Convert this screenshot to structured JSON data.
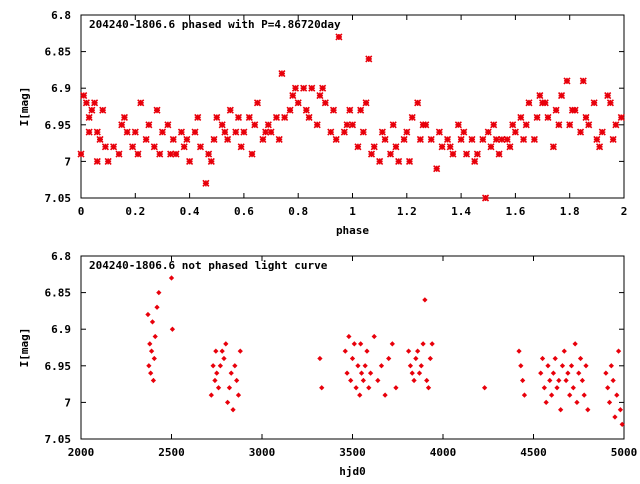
{
  "colors": {
    "points": "#e8000b",
    "axes": "#000000",
    "background": "#ffffff"
  },
  "chart_data": [
    {
      "type": "scatter",
      "title": "204240-1806.6 phased with P=4.86720day",
      "xlabel": "phase",
      "ylabel": "I[mag]",
      "xlim": [
        0,
        2
      ],
      "ylim": [
        7.05,
        6.8
      ],
      "y_inverted": true,
      "xticks": [
        "0",
        "0.2",
        "0.4",
        "0.6",
        "0.8",
        "1",
        "1.2",
        "1.4",
        "1.6",
        "1.8",
        "2"
      ],
      "yticks": [
        "6.8",
        "6.85",
        "6.9",
        "6.95",
        "7",
        "7.05"
      ],
      "marker": "star",
      "grid": false,
      "points": [
        [
          0.0,
          6.99
        ],
        [
          0.01,
          6.91
        ],
        [
          0.02,
          6.92
        ],
        [
          0.03,
          6.94
        ],
        [
          0.04,
          6.93
        ],
        [
          0.05,
          6.92
        ],
        [
          0.06,
          6.96
        ],
        [
          0.07,
          6.97
        ],
        [
          0.08,
          6.93
        ],
        [
          0.1,
          7.0
        ],
        [
          0.12,
          6.98
        ],
        [
          0.14,
          6.99
        ],
        [
          0.15,
          6.95
        ],
        [
          0.17,
          6.96
        ],
        [
          0.19,
          6.98
        ],
        [
          0.2,
          6.96
        ],
        [
          0.22,
          6.92
        ],
        [
          0.24,
          6.97
        ],
        [
          0.25,
          6.95
        ],
        [
          0.27,
          6.98
        ],
        [
          0.29,
          6.99
        ],
        [
          0.3,
          6.96
        ],
        [
          0.32,
          6.95
        ],
        [
          0.34,
          6.97
        ],
        [
          0.35,
          6.99
        ],
        [
          0.37,
          6.96
        ],
        [
          0.39,
          6.97
        ],
        [
          0.4,
          7.0
        ],
        [
          0.42,
          6.96
        ],
        [
          0.44,
          6.98
        ],
        [
          0.46,
          7.03
        ],
        [
          0.47,
          6.99
        ],
        [
          0.49,
          6.97
        ],
        [
          0.5,
          6.94
        ],
        [
          0.52,
          6.95
        ],
        [
          0.54,
          6.97
        ],
        [
          0.55,
          6.93
        ],
        [
          0.57,
          6.96
        ],
        [
          0.59,
          6.98
        ],
        [
          0.6,
          6.96
        ],
        [
          0.62,
          6.94
        ],
        [
          0.64,
          6.95
        ],
        [
          0.65,
          6.92
        ],
        [
          0.67,
          6.97
        ],
        [
          0.69,
          6.95
        ],
        [
          0.7,
          6.96
        ],
        [
          0.72,
          6.94
        ],
        [
          0.74,
          6.88
        ],
        [
          0.75,
          6.94
        ],
        [
          0.77,
          6.93
        ],
        [
          0.79,
          6.9
        ],
        [
          0.8,
          6.92
        ],
        [
          0.82,
          6.9
        ],
        [
          0.84,
          6.94
        ],
        [
          0.85,
          6.9
        ],
        [
          0.87,
          6.95
        ],
        [
          0.89,
          6.9
        ],
        [
          0.9,
          6.92
        ],
        [
          0.92,
          6.96
        ],
        [
          0.94,
          6.97
        ],
        [
          0.95,
          6.83
        ],
        [
          0.97,
          6.96
        ],
        [
          0.99,
          6.93
        ],
        [
          1.0,
          6.95
        ],
        [
          1.02,
          6.98
        ],
        [
          1.04,
          6.96
        ],
        [
          1.05,
          6.92
        ],
        [
          1.06,
          6.86
        ],
        [
          1.08,
          6.98
        ],
        [
          1.1,
          7.0
        ],
        [
          1.12,
          6.97
        ],
        [
          1.14,
          6.99
        ],
        [
          1.15,
          6.95
        ],
        [
          1.17,
          7.0
        ],
        [
          1.19,
          6.97
        ],
        [
          1.2,
          6.96
        ],
        [
          1.22,
          6.94
        ],
        [
          1.24,
          6.92
        ],
        [
          1.25,
          6.97
        ],
        [
          1.27,
          6.95
        ],
        [
          1.29,
          6.97
        ],
        [
          1.31,
          7.01
        ],
        [
          1.33,
          6.98
        ],
        [
          1.35,
          6.97
        ],
        [
          1.37,
          6.99
        ],
        [
          1.39,
          6.95
        ],
        [
          1.4,
          6.97
        ],
        [
          1.42,
          6.99
        ],
        [
          1.44,
          6.97
        ],
        [
          1.46,
          6.99
        ],
        [
          1.48,
          6.97
        ],
        [
          1.49,
          7.05
        ],
        [
          1.51,
          6.98
        ],
        [
          1.52,
          6.95
        ],
        [
          1.54,
          6.99
        ],
        [
          1.55,
          6.97
        ],
        [
          1.57,
          6.97
        ],
        [
          1.59,
          6.95
        ],
        [
          1.6,
          6.96
        ],
        [
          1.62,
          6.94
        ],
        [
          1.64,
          6.95
        ],
        [
          1.65,
          6.92
        ],
        [
          1.67,
          6.97
        ],
        [
          1.69,
          6.91
        ],
        [
          1.7,
          6.92
        ],
        [
          1.72,
          6.94
        ],
        [
          1.74,
          6.98
        ],
        [
          1.75,
          6.93
        ],
        [
          1.77,
          6.91
        ],
        [
          1.79,
          6.89
        ],
        [
          1.8,
          6.95
        ],
        [
          1.82,
          6.93
        ],
        [
          1.84,
          6.96
        ],
        [
          1.85,
          6.89
        ],
        [
          1.87,
          6.95
        ],
        [
          1.89,
          6.92
        ],
        [
          1.9,
          6.97
        ],
        [
          1.92,
          6.96
        ],
        [
          1.94,
          6.91
        ],
        [
          1.95,
          6.92
        ],
        [
          1.97,
          6.95
        ],
        [
          1.99,
          6.94
        ],
        [
          0.03,
          6.96
        ],
        [
          0.06,
          7.0
        ],
        [
          0.09,
          6.98
        ],
        [
          0.16,
          6.94
        ],
        [
          0.21,
          6.99
        ],
        [
          0.28,
          6.93
        ],
        [
          0.33,
          6.99
        ],
        [
          0.38,
          6.98
        ],
        [
          0.43,
          6.94
        ],
        [
          0.48,
          7.0
        ],
        [
          0.53,
          6.96
        ],
        [
          0.58,
          6.94
        ],
        [
          0.63,
          6.99
        ],
        [
          0.68,
          6.96
        ],
        [
          0.73,
          6.97
        ],
        [
          0.78,
          6.91
        ],
        [
          0.83,
          6.93
        ],
        [
          0.88,
          6.91
        ],
        [
          0.93,
          6.93
        ],
        [
          0.98,
          6.95
        ],
        [
          1.03,
          6.93
        ],
        [
          1.07,
          6.99
        ],
        [
          1.11,
          6.96
        ],
        [
          1.16,
          6.98
        ],
        [
          1.21,
          7.0
        ],
        [
          1.26,
          6.95
        ],
        [
          1.32,
          6.96
        ],
        [
          1.36,
          6.98
        ],
        [
          1.41,
          6.96
        ],
        [
          1.45,
          7.0
        ],
        [
          1.5,
          6.96
        ],
        [
          1.53,
          6.97
        ],
        [
          1.58,
          6.98
        ],
        [
          1.63,
          6.97
        ],
        [
          1.68,
          6.94
        ],
        [
          1.71,
          6.92
        ],
        [
          1.76,
          6.95
        ],
        [
          1.81,
          6.93
        ],
        [
          1.86,
          6.94
        ],
        [
          1.91,
          6.98
        ],
        [
          1.96,
          6.97
        ]
      ]
    },
    {
      "type": "scatter",
      "title": "204240-1806.6 not phased light curve",
      "xlabel": "hjd0",
      "ylabel": "I[mag]",
      "xlim": [
        2000,
        5000
      ],
      "ylim": [
        7.05,
        6.8
      ],
      "y_inverted": true,
      "xticks": [
        "2000",
        "2500",
        "3000",
        "3500",
        "4000",
        "4500",
        "5000"
      ],
      "yticks": [
        "6.8",
        "6.85",
        "6.9",
        "6.95",
        "7",
        "7.05"
      ],
      "marker": "diamond",
      "grid": false,
      "points": [
        [
          2370,
          6.88
        ],
        [
          2375,
          6.95
        ],
        [
          2380,
          6.92
        ],
        [
          2385,
          6.96
        ],
        [
          2390,
          6.93
        ],
        [
          2395,
          6.89
        ],
        [
          2400,
          6.97
        ],
        [
          2405,
          6.94
        ],
        [
          2410,
          6.91
        ],
        [
          2420,
          6.87
        ],
        [
          2430,
          6.85
        ],
        [
          2500,
          6.83
        ],
        [
          2505,
          6.9
        ],
        [
          2720,
          6.99
        ],
        [
          2730,
          6.95
        ],
        [
          2740,
          6.97
        ],
        [
          2745,
          6.93
        ],
        [
          2750,
          6.96
        ],
        [
          2760,
          6.98
        ],
        [
          2770,
          6.95
        ],
        [
          2780,
          6.93
        ],
        [
          2790,
          6.94
        ],
        [
          2800,
          6.92
        ],
        [
          2810,
          7.0
        ],
        [
          2820,
          6.98
        ],
        [
          2830,
          6.96
        ],
        [
          2840,
          7.01
        ],
        [
          2850,
          6.95
        ],
        [
          2860,
          6.97
        ],
        [
          2870,
          6.99
        ],
        [
          2880,
          6.93
        ],
        [
          3320,
          6.94
        ],
        [
          3330,
          6.98
        ],
        [
          3460,
          6.93
        ],
        [
          3470,
          6.96
        ],
        [
          3480,
          6.91
        ],
        [
          3490,
          6.97
        ],
        [
          3500,
          6.94
        ],
        [
          3510,
          6.92
        ],
        [
          3520,
          6.98
        ],
        [
          3530,
          6.95
        ],
        [
          3540,
          6.99
        ],
        [
          3545,
          6.92
        ],
        [
          3550,
          6.96
        ],
        [
          3560,
          6.97
        ],
        [
          3570,
          6.95
        ],
        [
          3580,
          6.93
        ],
        [
          3590,
          6.98
        ],
        [
          3600,
          6.96
        ],
        [
          3620,
          6.91
        ],
        [
          3640,
          6.97
        ],
        [
          3660,
          6.95
        ],
        [
          3680,
          6.99
        ],
        [
          3700,
          6.94
        ],
        [
          3720,
          6.92
        ],
        [
          3740,
          6.98
        ],
        [
          3810,
          6.93
        ],
        [
          3820,
          6.95
        ],
        [
          3830,
          6.96
        ],
        [
          3840,
          6.97
        ],
        [
          3850,
          6.94
        ],
        [
          3860,
          6.93
        ],
        [
          3870,
          6.96
        ],
        [
          3880,
          6.95
        ],
        [
          3890,
          6.92
        ],
        [
          3900,
          6.86
        ],
        [
          3910,
          6.97
        ],
        [
          3920,
          6.98
        ],
        [
          3930,
          6.94
        ],
        [
          3940,
          6.92
        ],
        [
          4230,
          6.98
        ],
        [
          4420,
          6.93
        ],
        [
          4430,
          6.95
        ],
        [
          4440,
          6.97
        ],
        [
          4450,
          6.99
        ],
        [
          4540,
          6.96
        ],
        [
          4550,
          6.94
        ],
        [
          4560,
          6.98
        ],
        [
          4570,
          7.0
        ],
        [
          4580,
          6.95
        ],
        [
          4590,
          6.97
        ],
        [
          4600,
          6.99
        ],
        [
          4610,
          6.96
        ],
        [
          4620,
          6.94
        ],
        [
          4630,
          6.98
        ],
        [
          4640,
          6.97
        ],
        [
          4650,
          7.01
        ],
        [
          4660,
          6.95
        ],
        [
          4670,
          6.93
        ],
        [
          4680,
          6.97
        ],
        [
          4690,
          6.96
        ],
        [
          4700,
          6.99
        ],
        [
          4710,
          6.95
        ],
        [
          4720,
          6.98
        ],
        [
          4730,
          6.92
        ],
        [
          4740,
          7.0
        ],
        [
          4750,
          6.96
        ],
        [
          4760,
          6.94
        ],
        [
          4770,
          6.97
        ],
        [
          4780,
          6.99
        ],
        [
          4790,
          6.95
        ],
        [
          4800,
          7.01
        ],
        [
          4900,
          6.96
        ],
        [
          4910,
          6.98
        ],
        [
          4920,
          7.0
        ],
        [
          4930,
          6.95
        ],
        [
          4940,
          6.97
        ],
        [
          4950,
          7.02
        ],
        [
          4960,
          6.99
        ],
        [
          4970,
          6.93
        ],
        [
          4980,
          7.01
        ],
        [
          4990,
          7.03
        ]
      ]
    }
  ]
}
